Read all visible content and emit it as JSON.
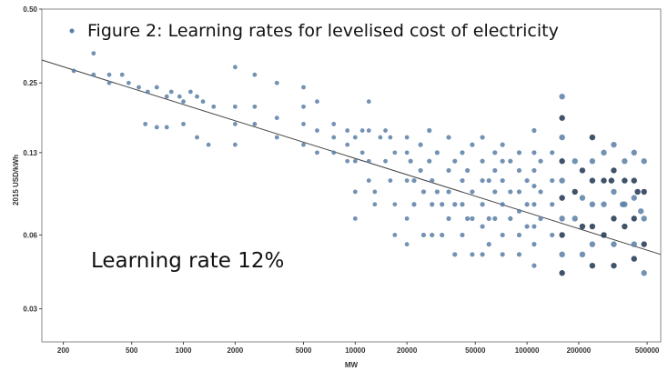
{
  "chart_data": {
    "type": "scatter",
    "title": "Figure 2: Learning rates for levelised cost of electricity",
    "xlabel": "MW",
    "ylabel": "2015 USD/kWh",
    "x_scale": "log",
    "y_scale": "log",
    "xlim": [
      150,
      600000
    ],
    "ylim": [
      0.022,
      0.5
    ],
    "x_ticks": [
      200,
      500,
      1000,
      2000,
      5000,
      10000,
      20000,
      50000,
      100000,
      200000,
      500000
    ],
    "x_tick_labels": [
      "200",
      "500",
      "1000",
      "2000",
      "5000",
      "10000",
      "20000",
      "50000",
      "100000",
      "200000",
      "500000"
    ],
    "y_ticks": [
      0.03,
      0.06,
      0.13,
      0.25,
      0.5
    ],
    "y_tick_labels": [
      "0.03",
      "0.06",
      "0.13",
      "0.25",
      "0.50"
    ],
    "annotation": "Learning rate 12%",
    "grid": false,
    "legend": "none",
    "point_color": "#5b7fa6",
    "dark_point_color": "#1f3550",
    "line_color": "#444444",
    "trend_line": {
      "x": [
        150,
        600000
      ],
      "y": [
        0.31,
        0.05
      ]
    },
    "series": [
      {
        "points": [
          [
            300,
            0.33
          ],
          [
            230,
            0.28
          ],
          [
            300,
            0.27
          ],
          [
            370,
            0.27
          ],
          [
            370,
            0.25
          ],
          [
            440,
            0.27
          ],
          [
            480,
            0.25
          ],
          [
            550,
            0.24
          ],
          [
            620,
            0.23
          ],
          [
            700,
            0.24
          ],
          [
            800,
            0.22
          ],
          [
            850,
            0.23
          ],
          [
            950,
            0.22
          ],
          [
            1000,
            0.21
          ],
          [
            1100,
            0.23
          ],
          [
            1200,
            0.22
          ],
          [
            1300,
            0.21
          ],
          [
            1500,
            0.2
          ],
          [
            600,
            0.17
          ],
          [
            700,
            0.165
          ],
          [
            800,
            0.165
          ],
          [
            1000,
            0.17
          ],
          [
            1200,
            0.15
          ],
          [
            1400,
            0.14
          ],
          [
            2000,
            0.29
          ],
          [
            2000,
            0.2
          ],
          [
            2000,
            0.17
          ],
          [
            2000,
            0.14
          ],
          [
            2600,
            0.27
          ],
          [
            2600,
            0.2
          ],
          [
            2600,
            0.17
          ],
          [
            3500,
            0.25
          ],
          [
            3500,
            0.18
          ],
          [
            3500,
            0.15
          ],
          [
            5000,
            0.24
          ],
          [
            5000,
            0.2
          ],
          [
            5000,
            0.17
          ],
          [
            5000,
            0.14
          ],
          [
            6000,
            0.21
          ],
          [
            6000,
            0.16
          ],
          [
            6000,
            0.13
          ],
          [
            7500,
            0.17
          ],
          [
            7500,
            0.15
          ],
          [
            7500,
            0.13
          ],
          [
            9000,
            0.16
          ],
          [
            9000,
            0.14
          ],
          [
            9000,
            0.12
          ],
          [
            10000,
            0.15
          ],
          [
            10000,
            0.12
          ],
          [
            10000,
            0.09
          ],
          [
            10000,
            0.07
          ],
          [
            11000,
            0.16
          ],
          [
            11000,
            0.13
          ],
          [
            12000,
            0.21
          ],
          [
            12000,
            0.16
          ],
          [
            12000,
            0.12
          ],
          [
            12000,
            0.1
          ],
          [
            13000,
            0.09
          ],
          [
            13000,
            0.08
          ],
          [
            14000,
            0.15
          ],
          [
            15000,
            0.16
          ],
          [
            15000,
            0.12
          ],
          [
            16000,
            0.15
          ],
          [
            16000,
            0.1
          ],
          [
            17000,
            0.13
          ],
          [
            17000,
            0.08
          ],
          [
            17000,
            0.06
          ],
          [
            20000,
            0.15
          ],
          [
            20000,
            0.13
          ],
          [
            20000,
            0.1
          ],
          [
            20000,
            0.07
          ],
          [
            20000,
            0.055
          ],
          [
            21000,
            0.12
          ],
          [
            22000,
            0.1
          ],
          [
            22000,
            0.08
          ],
          [
            24000,
            0.14
          ],
          [
            24000,
            0.11
          ],
          [
            25000,
            0.09
          ],
          [
            25000,
            0.06
          ],
          [
            27000,
            0.16
          ],
          [
            27000,
            0.12
          ],
          [
            28000,
            0.1
          ],
          [
            28000,
            0.08
          ],
          [
            28000,
            0.06
          ],
          [
            30000,
            0.13
          ],
          [
            30000,
            0.09
          ],
          [
            32000,
            0.08
          ],
          [
            32000,
            0.06
          ],
          [
            35000,
            0.15
          ],
          [
            35000,
            0.11
          ],
          [
            35000,
            0.09
          ],
          [
            35000,
            0.07
          ],
          [
            38000,
            0.12
          ],
          [
            38000,
            0.08
          ],
          [
            38000,
            0.05
          ],
          [
            42000,
            0.13
          ],
          [
            42000,
            0.1
          ],
          [
            42000,
            0.08
          ],
          [
            42000,
            0.06
          ],
          [
            45000,
            0.11
          ],
          [
            45000,
            0.07
          ],
          [
            48000,
            0.14
          ],
          [
            48000,
            0.09
          ],
          [
            48000,
            0.07
          ],
          [
            48000,
            0.05
          ],
          [
            55000,
            0.15
          ],
          [
            55000,
            0.12
          ],
          [
            55000,
            0.1
          ],
          [
            55000,
            0.08
          ],
          [
            55000,
            0.065
          ],
          [
            55000,
            0.05
          ],
          [
            60000,
            0.1
          ],
          [
            60000,
            0.07
          ],
          [
            60000,
            0.055
          ],
          [
            65000,
            0.13
          ],
          [
            65000,
            0.11
          ],
          [
            65000,
            0.09
          ],
          [
            65000,
            0.07
          ],
          [
            72000,
            0.14
          ],
          [
            72000,
            0.12
          ],
          [
            72000,
            0.1
          ],
          [
            72000,
            0.08
          ],
          [
            72000,
            0.06
          ],
          [
            72000,
            0.05
          ],
          [
            80000,
            0.12
          ],
          [
            80000,
            0.09
          ],
          [
            80000,
            0.07
          ],
          [
            90000,
            0.13
          ],
          [
            90000,
            0.11
          ],
          [
            90000,
            0.09
          ],
          [
            90000,
            0.075
          ],
          [
            90000,
            0.06
          ],
          [
            90000,
            0.05
          ],
          [
            100000,
            0.1
          ],
          [
            100000,
            0.08
          ],
          [
            100000,
            0.065
          ],
          [
            110000,
            0.16
          ],
          [
            110000,
            0.13
          ],
          [
            110000,
            0.11
          ],
          [
            110000,
            0.095
          ],
          [
            110000,
            0.08
          ],
          [
            110000,
            0.065
          ],
          [
            110000,
            0.055
          ],
          [
            110000,
            0.045
          ],
          [
            120000,
            0.12
          ],
          [
            120000,
            0.09
          ],
          [
            120000,
            0.07
          ],
          [
            140000,
            0.13
          ],
          [
            140000,
            0.1
          ],
          [
            140000,
            0.08
          ],
          [
            140000,
            0.06
          ],
          [
            160000,
            0.22
          ],
          [
            160000,
            0.18
          ],
          [
            160000,
            0.15
          ],
          [
            160000,
            0.12
          ],
          [
            160000,
            0.1
          ],
          [
            160000,
            0.085
          ],
          [
            160000,
            0.07
          ],
          [
            160000,
            0.06
          ],
          [
            160000,
            0.05
          ],
          [
            160000,
            0.042
          ],
          [
            190000,
            0.12
          ],
          [
            190000,
            0.09
          ],
          [
            190000,
            0.07
          ],
          [
            210000,
            0.11
          ],
          [
            210000,
            0.085
          ],
          [
            210000,
            0.065
          ],
          [
            210000,
            0.05
          ],
          [
            240000,
            0.15
          ],
          [
            240000,
            0.12
          ],
          [
            240000,
            0.1
          ],
          [
            240000,
            0.08
          ],
          [
            240000,
            0.065
          ],
          [
            240000,
            0.055
          ],
          [
            240000,
            0.045
          ],
          [
            280000,
            0.13
          ],
          [
            280000,
            0.1
          ],
          [
            280000,
            0.08
          ],
          [
            280000,
            0.06
          ],
          [
            320000,
            0.14
          ],
          [
            320000,
            0.11
          ],
          [
            320000,
            0.09
          ],
          [
            320000,
            0.07
          ],
          [
            320000,
            0.055
          ],
          [
            320000,
            0.045
          ],
          [
            370000,
            0.12
          ],
          [
            370000,
            0.1
          ],
          [
            370000,
            0.08
          ],
          [
            370000,
            0.065
          ],
          [
            420000,
            0.13
          ],
          [
            420000,
            0.1
          ],
          [
            420000,
            0.085
          ],
          [
            420000,
            0.07
          ],
          [
            420000,
            0.055
          ],
          [
            420000,
            0.048
          ],
          [
            480000,
            0.12
          ],
          [
            480000,
            0.09
          ],
          [
            480000,
            0.07
          ],
          [
            480000,
            0.055
          ],
          [
            480000,
            0.042
          ],
          [
            310000,
            0.1
          ],
          [
            360000,
            0.08
          ],
          [
            440000,
            0.09
          ],
          [
            460000,
            0.075
          ]
        ]
      }
    ]
  }
}
